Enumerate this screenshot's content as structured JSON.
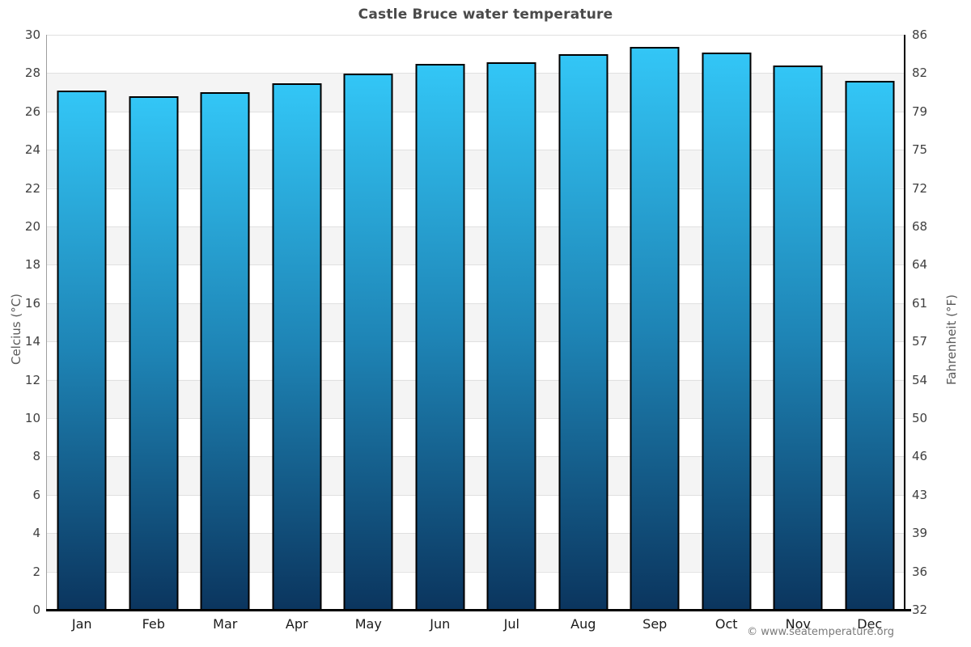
{
  "title": "Castle Bruce water temperature",
  "footer": "© www.seatemperature.org",
  "axes": {
    "left": {
      "label": "Celcius (°C)"
    },
    "right": {
      "label": "Fahrenheit (°F)"
    }
  },
  "chart_data": {
    "type": "bar",
    "title": "Castle Bruce water temperature",
    "categories": [
      "Jan",
      "Feb",
      "Mar",
      "Apr",
      "May",
      "Jun",
      "Jul",
      "Aug",
      "Sep",
      "Oct",
      "Nov",
      "Dec"
    ],
    "values": [
      27.0,
      26.7,
      26.9,
      27.4,
      27.9,
      28.4,
      28.5,
      28.9,
      29.3,
      29.0,
      28.3,
      27.5
    ],
    "unit": "°C",
    "ylabel_left": "Celcius (°C)",
    "ylabel_right": "Fahrenheit (°F)",
    "ylim": [
      0,
      30
    ],
    "celsius_ticks": [
      30,
      28,
      26,
      24,
      22,
      20,
      18,
      16,
      14,
      12,
      10,
      8,
      6,
      4,
      2,
      0
    ],
    "fahrenheit_ticks": [
      86,
      82,
      79,
      75,
      72,
      68,
      64,
      61,
      57,
      54,
      50,
      46,
      43,
      39,
      36,
      32
    ],
    "legend": false,
    "grid": "horizontal alternating bands",
    "colors": {
      "bar_top": "#33c6f6",
      "bar_mid": "#1e84b5",
      "bar_bottom": "#0b355e",
      "bar_border": "#000000",
      "band_gray": "#f4f4f4",
      "band_white": "#ffffff",
      "gridline": "#e0e0e0",
      "title_text": "#4a4a4a",
      "tick_text": "#404040",
      "month_text": "#1a1a1a",
      "axis_label_text": "#5a5a5a",
      "footer_text": "#7a7a7a"
    }
  }
}
